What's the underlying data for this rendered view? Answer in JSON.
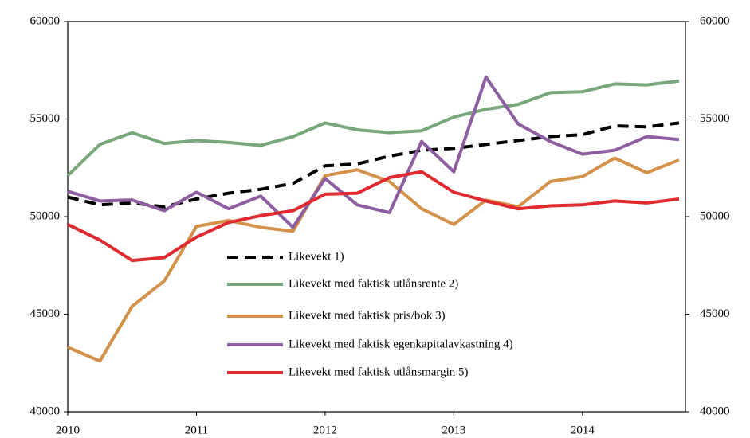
{
  "chart_data": {
    "type": "line",
    "x": [
      2010,
      2010.25,
      2010.5,
      2010.75,
      2011,
      2011.25,
      2011.5,
      2011.75,
      2012,
      2012.25,
      2012.5,
      2012.75,
      2013,
      2013.25,
      2013.5,
      2013.75,
      2014,
      2014.25,
      2014.5,
      2014.75
    ],
    "xlim": [
      2010,
      2014.8
    ],
    "xticks": [
      2010,
      2011,
      2012,
      2013,
      2014
    ],
    "ylim": [
      40000,
      60000
    ],
    "yticks": [
      40000,
      45000,
      50000,
      55000,
      60000
    ],
    "y2lim": [
      40000,
      60000
    ],
    "y2ticks": [
      40000,
      45000,
      50000,
      55000,
      60000
    ],
    "grid": false,
    "legend": "center",
    "series": [
      {
        "name": "Likevekt 1)",
        "color": "#000000",
        "dash": true,
        "values": [
          51000,
          50600,
          50700,
          50500,
          50900,
          51200,
          51400,
          51700,
          52600,
          52700,
          53100,
          53400,
          53500,
          53700,
          53900,
          54100,
          54200,
          54650,
          54600,
          54800
        ]
      },
      {
        "name": "Likevekt med faktisk utlånsrente 2)",
        "color": "#77a77a",
        "dash": false,
        "values": [
          52100,
          53700,
          54300,
          53750,
          53900,
          53800,
          53650,
          54100,
          54800,
          54450,
          54300,
          54400,
          55100,
          55500,
          55750,
          56350,
          56400,
          56800,
          56750,
          56950
        ]
      },
      {
        "name": "Likevekt med faktisk pris/bok 3)",
        "color": "#d4914a",
        "dash": false,
        "values": [
          43300,
          42600,
          45400,
          46700,
          49500,
          49800,
          49450,
          49250,
          52100,
          52400,
          51800,
          50400,
          49600,
          50850,
          50500,
          51800,
          52050,
          53000,
          52250,
          52900
        ]
      },
      {
        "name": "Likevekt med faktisk egenkapitalavkastning 4)",
        "color": "#8e5ea2",
        "dash": false,
        "values": [
          51300,
          50800,
          50850,
          50300,
          51250,
          50400,
          51050,
          49450,
          51950,
          50600,
          50200,
          53850,
          52300,
          57150,
          54750,
          53850,
          53200,
          53400,
          54100,
          53950
        ]
      },
      {
        "name": "Likevekt med faktisk utlånsmargin 5)",
        "color": "#e02a30",
        "dash": false,
        "values": [
          49600,
          48800,
          47750,
          47900,
          48950,
          49700,
          50050,
          50300,
          51150,
          51200,
          52000,
          52300,
          51250,
          50800,
          50400,
          50550,
          50600,
          50800,
          50700,
          50900
        ]
      }
    ]
  }
}
